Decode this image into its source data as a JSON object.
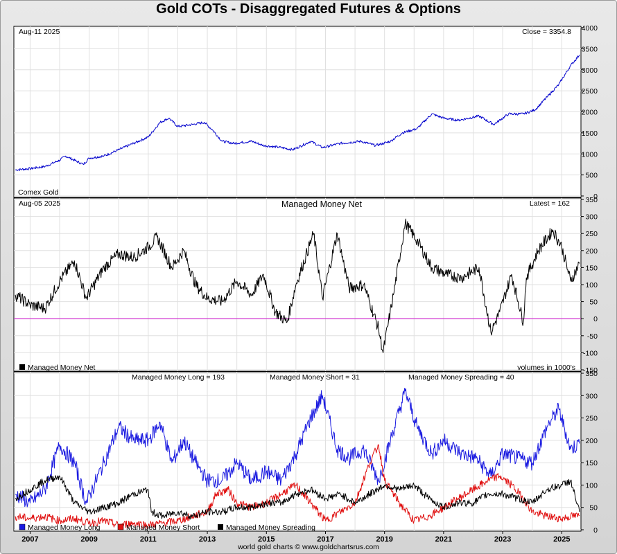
{
  "title": "Gold COTs - Disaggregated Futures & Options",
  "credit": "world gold charts © www.goldchartsrus.com",
  "colors": {
    "price": "#0000cc",
    "net": "#000000",
    "zero": "#cc00cc",
    "long": "#1a1ae0",
    "short": "#e01010",
    "spread": "#000000"
  },
  "chart_data": [
    {
      "type": "line",
      "panel": "price",
      "date_label": "Aug-11  2025",
      "latest_label": "Close = 3354.8",
      "series_label": "Comex Gold",
      "ylim": [
        0,
        4000
      ],
      "yticks": [
        0,
        500,
        1000,
        1500,
        2000,
        2500,
        3000,
        3500,
        4000
      ],
      "series": [
        {
          "name": "Comex Gold",
          "x": [
            2006.5,
            2007,
            2007.5,
            2008,
            2008.2,
            2008.8,
            2009,
            2009.5,
            2010,
            2010.5,
            2011,
            2011.4,
            2011.7,
            2012,
            2012.5,
            2012.9,
            2013.2,
            2013.5,
            2013.9,
            2014.5,
            2014.9,
            2015.5,
            2015.9,
            2016.5,
            2016.9,
            2017.5,
            2018.2,
            2018.7,
            2019.2,
            2019.6,
            2020.1,
            2020.6,
            2021.0,
            2021.5,
            2022.2,
            2022.7,
            2023.2,
            2023.7,
            2024.1,
            2024.5,
            2024.9,
            2025.3,
            2025.6
          ],
          "y": [
            620,
            650,
            700,
            850,
            950,
            750,
            900,
            950,
            1100,
            1250,
            1400,
            1750,
            1850,
            1650,
            1700,
            1750,
            1550,
            1300,
            1250,
            1300,
            1200,
            1150,
            1100,
            1300,
            1150,
            1250,
            1300,
            1200,
            1300,
            1500,
            1600,
            1950,
            1850,
            1800,
            1900,
            1700,
            1950,
            1950,
            2050,
            2350,
            2650,
            3100,
            3354.8
          ]
        }
      ]
    },
    {
      "type": "line",
      "panel": "managed-money-net",
      "date_label": "Aug-05  2025",
      "panel_title": "Managed Money Net",
      "latest_label": "Latest = 162",
      "legend": "Managed Money Net",
      "note": "volumes in 1000's",
      "ylim": [
        -150,
        350
      ],
      "yticks": [
        -150,
        -100,
        -50,
        0,
        50,
        100,
        150,
        200,
        250,
        300,
        350
      ],
      "series": [
        {
          "name": "Managed Money Net",
          "x": [
            2006.5,
            2007,
            2007.5,
            2008,
            2008.5,
            2008.9,
            2009.5,
            2010,
            2010.5,
            2011,
            2011.3,
            2011.8,
            2012.2,
            2012.6,
            2013,
            2013.5,
            2014,
            2014.5,
            2014.9,
            2015.3,
            2015.7,
            2016,
            2016.6,
            2016.9,
            2017.4,
            2017.8,
            2018.3,
            2018.8,
            2018.95,
            2019.3,
            2019.7,
            2020.1,
            2020.6,
            2021.1,
            2021.6,
            2022.2,
            2022.6,
            2022.9,
            2023.3,
            2023.7,
            2023.8,
            2024.2,
            2024.7,
            2025.0,
            2025.3,
            2025.6
          ],
          "y": [
            70,
            40,
            30,
            110,
            170,
            60,
            150,
            190,
            180,
            210,
            240,
            150,
            200,
            100,
            60,
            50,
            110,
            70,
            130,
            20,
            -10,
            100,
            250,
            60,
            250,
            90,
            100,
            -30,
            -100,
            70,
            280,
            230,
            150,
            130,
            120,
            150,
            -40,
            20,
            130,
            -10,
            120,
            200,
            260,
            210,
            110,
            162
          ]
        }
      ]
    },
    {
      "type": "line",
      "panel": "managed-money-long-short-spreading",
      "legend_top": [
        {
          "label": "Managed Money Long = 193"
        },
        {
          "label": "Managed Money Short = 31"
        },
        {
          "label": "Managed Money Spreading = 40"
        }
      ],
      "ylim": [
        0,
        350
      ],
      "yticks": [
        0,
        50,
        100,
        150,
        200,
        250,
        300,
        350
      ],
      "xticks": [
        "2007",
        "2009",
        "2011",
        "2013",
        "2015",
        "2017",
        "2019",
        "2021",
        "2023",
        "2025"
      ],
      "series": [
        {
          "name": "Managed Money Long",
          "x": [
            2006.5,
            2007,
            2007.5,
            2008,
            2008.5,
            2008.9,
            2009.5,
            2010,
            2010.5,
            2011,
            2011.4,
            2011.8,
            2012.2,
            2012.6,
            2013,
            2013.5,
            2014,
            2014.5,
            2015,
            2015.5,
            2016,
            2016.5,
            2016.9,
            2017.4,
            2017.8,
            2018.3,
            2018.8,
            2019.2,
            2019.7,
            2020.1,
            2020.6,
            2021,
            2021.6,
            2022.1,
            2022.6,
            2023,
            2023.5,
            2024,
            2024.5,
            2024.9,
            2025.3,
            2025.6
          ],
          "y": [
            80,
            60,
            90,
            190,
            150,
            60,
            150,
            230,
            200,
            200,
            240,
            150,
            200,
            150,
            110,
            110,
            150,
            110,
            130,
            110,
            170,
            250,
            300,
            180,
            160,
            180,
            110,
            200,
            310,
            230,
            170,
            200,
            170,
            160,
            120,
            170,
            160,
            150,
            230,
            270,
            180,
            193
          ]
        },
        {
          "name": "Managed Money Short",
          "x": [
            2006.5,
            2007,
            2007.5,
            2008,
            2008.5,
            2009,
            2009.5,
            2010,
            2010.5,
            2011,
            2011.5,
            2012,
            2012.5,
            2013,
            2013.3,
            2013.7,
            2014,
            2014.5,
            2015,
            2015.5,
            2016,
            2016.5,
            2017,
            2017.5,
            2018,
            2018.5,
            2018.8,
            2019,
            2019.5,
            2020,
            2020.5,
            2021,
            2021.5,
            2022,
            2022.5,
            2022.9,
            2023.3,
            2023.7,
            2024,
            2024.5,
            2025,
            2025.3,
            2025.6
          ],
          "y": [
            30,
            25,
            30,
            20,
            25,
            15,
            20,
            10,
            15,
            10,
            15,
            20,
            30,
            40,
            80,
            90,
            60,
            50,
            60,
            80,
            100,
            60,
            20,
            40,
            60,
            150,
            190,
            110,
            60,
            20,
            30,
            50,
            70,
            90,
            110,
            120,
            100,
            70,
            40,
            30,
            25,
            30,
            31
          ]
        },
        {
          "name": "Managed Money Spreading",
          "x": [
            2006.5,
            2007,
            2007.5,
            2008,
            2008.5,
            2009,
            2009.5,
            2010,
            2010.5,
            2011,
            2011.1,
            2011.5,
            2012,
            2012.5,
            2013,
            2013.5,
            2014,
            2014.5,
            2015,
            2015.5,
            2016,
            2016.5,
            2017,
            2017.5,
            2018,
            2018.5,
            2019,
            2019.5,
            2020,
            2020.5,
            2021,
            2021.5,
            2022,
            2022.5,
            2023,
            2023.5,
            2024,
            2024.5,
            2025,
            2025.3,
            2025.6
          ],
          "y": [
            70,
            90,
            110,
            120,
            60,
            40,
            50,
            60,
            80,
            90,
            40,
            30,
            40,
            30,
            40,
            40,
            50,
            50,
            60,
            60,
            80,
            90,
            70,
            80,
            60,
            80,
            100,
            90,
            100,
            70,
            50,
            60,
            60,
            80,
            80,
            70,
            60,
            90,
            100,
            110,
            40
          ]
        }
      ]
    }
  ]
}
